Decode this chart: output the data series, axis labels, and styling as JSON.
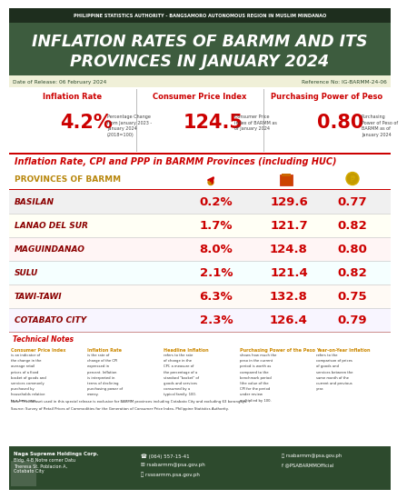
{
  "title_top": "PHILIPPINE STATISTICS AUTHORITY - BANGSAMORO AUTONOMOUS REGION IN MUSLIM MINDANAO",
  "title_main_line1": "INFLATION RATES OF BARMM AND ITS",
  "title_main_line2": "PROVINCES IN JANUARY 2024",
  "date_release": "Date of Release: 06 February 2024",
  "reference_no": "Reference No: IG-BARMM-24-06",
  "header_bg": "#3d5c3e",
  "top_bar_bg": "#1a2a1a",
  "kpi_labels": [
    "Inflation Rate",
    "Consumer Price Index",
    "Purchasing Power of Peso"
  ],
  "kpi_values": [
    "4.2%",
    "124.5",
    "0.80"
  ],
  "kpi_subs": [
    [
      "Percentage Change",
      "from January 2023 -",
      "January 2024",
      "(2018=100)"
    ],
    [
      "Consumer Price",
      "Index of BARMM as",
      "of January 2024",
      ""
    ],
    [
      "Purchasing",
      "Power of Peso of",
      "BARMM as of",
      "January 2024"
    ]
  ],
  "section_title": "Inflation Rate, CPI and PPP in BARMM Provinces (including HUC)",
  "table_header": "PROVINCES OF BARMM",
  "provinces": [
    "BASILAN",
    "LANAO DEL SUR",
    "MAGUINDANAO",
    "SULU",
    "TAWI-TAWI",
    "COTABATO CITY"
  ],
  "inflation": [
    "0.2%",
    "1.7%",
    "8.0%",
    "2.1%",
    "6.3%",
    "2.3%"
  ],
  "cpi": [
    "129.6",
    "121.7",
    "124.8",
    "121.4",
    "132.8",
    "126.4"
  ],
  "ppp": [
    "0.77",
    "0.82",
    "0.80",
    "0.82",
    "0.75",
    "0.79"
  ],
  "row_colors": [
    "#f0f0f0",
    "#fffff5",
    "#fff5f5",
    "#f5ffff",
    "#fffaf5",
    "#f8f5ff"
  ],
  "dark_green": "#2d4a2d",
  "medium_green": "#3d5c3e",
  "light_green_bar": "#e8f0e8",
  "red": "#cc0000",
  "dark_red": "#8B0000",
  "gold": "#b8860b",
  "tech_titles": [
    "Consumer Price Index",
    "Inflation Rate",
    "Headline Inflation",
    "Purchasing Power of the Peso",
    "Year-on-Year Inflation"
  ],
  "tech_texts": [
    "is an indicator of the change in the average retail prices of a fixed basket of goods and services commonly purchased by households relative to a base year.",
    "is the rate of change of the CPI expressed in percent. Inflation is interpreted in terms of declining purchasing power of money.",
    "refers to the rate of change in the CPI; a measure of the percentage of a standard \"basket\" of goods and services consumed by a typical family. 100.",
    "shows how much the peso in the current period is worth as compared to the benchmark period (the value of the CPI for the period under review multiplied by 100.",
    "refers to the comparison of prices of goods and services between the same month of the current and previous year."
  ],
  "note_bottom": "Note: The dataset used in this special release is exclusive for BARMM provinces including Cotabato City and excluding 63 barangays.",
  "source": "Source: Survey of Retail Prices of Commodities for the Generation of Consumer Price Index, Philippine Statistics Authority.",
  "footer_line1": "Naga Supreme Holdings Corp.",
  "footer_line2": "Bldg. 4-B Notre corner Datu",
  "footer_line3": "Theresa St. Poblacion A,",
  "footer_line4": "Cotabato City",
  "footer_phone": "(064) 557-15-41",
  "footer_email": "rsabarmm@psa.gov.ph",
  "footer_web": "rssoarmm.psa.gov.ph",
  "footer_fb": "@PSABARMMOfficial"
}
